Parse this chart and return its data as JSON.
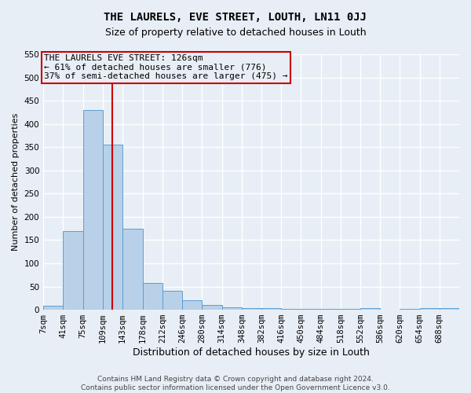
{
  "title": "THE LAURELS, EVE STREET, LOUTH, LN11 0JJ",
  "subtitle": "Size of property relative to detached houses in Louth",
  "xlabel": "Distribution of detached houses by size in Louth",
  "ylabel": "Number of detached properties",
  "footer_line1": "Contains HM Land Registry data © Crown copyright and database right 2024.",
  "footer_line2": "Contains public sector information licensed under the Open Government Licence v3.0.",
  "bin_edges": [
    7,
    41,
    75,
    109,
    143,
    178,
    212,
    246,
    280,
    314,
    348,
    382,
    416,
    450,
    484,
    518,
    552,
    586,
    620,
    654,
    688,
    722
  ],
  "bin_labels": [
    "7sqm",
    "41sqm",
    "75sqm",
    "109sqm",
    "143sqm",
    "178sqm",
    "212sqm",
    "246sqm",
    "280sqm",
    "314sqm",
    "348sqm",
    "382sqm",
    "416sqm",
    "450sqm",
    "484sqm",
    "518sqm",
    "552sqm",
    "586sqm",
    "620sqm",
    "654sqm",
    "688sqm"
  ],
  "counts": [
    8,
    170,
    430,
    355,
    175,
    57,
    40,
    20,
    10,
    5,
    3,
    4,
    1,
    2,
    1,
    1,
    4,
    0,
    1,
    4,
    4
  ],
  "bar_color": "#b8d0e8",
  "bar_edgecolor": "#5a9fd4",
  "property_line_x": 126,
  "property_line_color": "#cc0000",
  "annotation_line1": "THE LAURELS EVE STREET: 126sqm",
  "annotation_line2": "← 61% of detached houses are smaller (776)",
  "annotation_line3": "37% of semi-detached houses are larger (475) →",
  "annotation_box_edgecolor": "#cc0000",
  "ylim": [
    0,
    550
  ],
  "yticks": [
    0,
    50,
    100,
    150,
    200,
    250,
    300,
    350,
    400,
    450,
    500,
    550
  ],
  "background_color": "#e8eef5",
  "grid_color": "#ffffff",
  "title_fontsize": 10,
  "subtitle_fontsize": 9,
  "xlabel_fontsize": 9,
  "ylabel_fontsize": 8,
  "tick_fontsize": 7.5,
  "annotation_fontsize": 8,
  "footer_fontsize": 6.5
}
